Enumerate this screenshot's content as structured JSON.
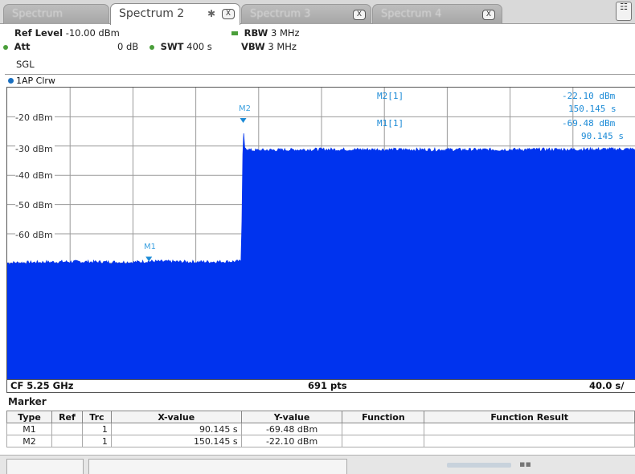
{
  "tabs": [
    {
      "label": "Spectrum",
      "close": "X",
      "active": false,
      "dim": true
    },
    {
      "label": "Spectrum 2",
      "close": "X",
      "active": true,
      "dim": false,
      "pin": "✱"
    },
    {
      "label": "Spectrum 3",
      "close": "X",
      "active": false,
      "dim": true
    },
    {
      "label": "Spectrum 4",
      "close": "X",
      "active": false,
      "dim": true
    }
  ],
  "corner_icon": "☷",
  "settings": {
    "ref_level_label": "Ref Level",
    "ref_level_value": "-10.00 dBm",
    "att_label": "Att",
    "att_value": "0 dB",
    "swt_label": "SWT",
    "swt_value": "400 s",
    "rbw_label": "RBW",
    "rbw_value": "3 MHz",
    "vbw_label": "VBW",
    "vbw_value": "3 MHz",
    "mode": "SGL"
  },
  "trace_label": "1AP Clrw",
  "colors": {
    "trace": "#0033ee",
    "marker": "#1b8ad6",
    "accent_green": "#4a9e3a"
  },
  "plot": {
    "y_labels": [
      "-20 dBm",
      "-30 dBm",
      "-40 dBm",
      "-50 dBm",
      "-60 dBm"
    ],
    "markers_on_plot": [
      {
        "name": "M1",
        "y_dbm": -69.48,
        "x_s": 90.145
      },
      {
        "name": "M2",
        "y_dbm": -22.1,
        "x_s": 150.145
      }
    ],
    "marker_readout": [
      {
        "name": "M2[1]",
        "level": "-22.10 dBm",
        "time": "150.145 s"
      },
      {
        "name": "M1[1]",
        "level": "-69.48 dBm",
        "time": "90.145 s"
      }
    ]
  },
  "chart_data": {
    "type": "area",
    "x_unit": "s",
    "y_unit": "dBm",
    "xlim": [
      0,
      400
    ],
    "ylim": [
      -110,
      -10
    ],
    "series": [
      {
        "x": [
          0,
          40,
          80,
          90.145,
          120,
          149,
          150,
          150.145,
          151,
          155,
          200,
          300,
          400
        ],
        "y": [
          -70,
          -69.6,
          -69.8,
          -69.48,
          -69.7,
          -69.5,
          -30,
          -22.1,
          -30.5,
          -31.5,
          -31.2,
          -31.3,
          -31.1
        ]
      }
    ],
    "grid": true
  },
  "footer": {
    "cf": "CF 5.25 GHz",
    "pts": "691 pts",
    "span": "40.0 s/"
  },
  "marker_table": {
    "title": "Marker",
    "headers": [
      "Type",
      "Ref",
      "Trc",
      "X-value",
      "Y-value",
      "Function",
      "Function Result"
    ],
    "rows": [
      {
        "type": "M1",
        "ref": "",
        "trc": "1",
        "x": "90.145 s",
        "y": "-69.48 dBm",
        "func": "",
        "result": ""
      },
      {
        "type": "M2",
        "ref": "",
        "trc": "1",
        "x": "150.145 s",
        "y": "-22.10 dBm",
        "func": "",
        "result": ""
      }
    ]
  }
}
